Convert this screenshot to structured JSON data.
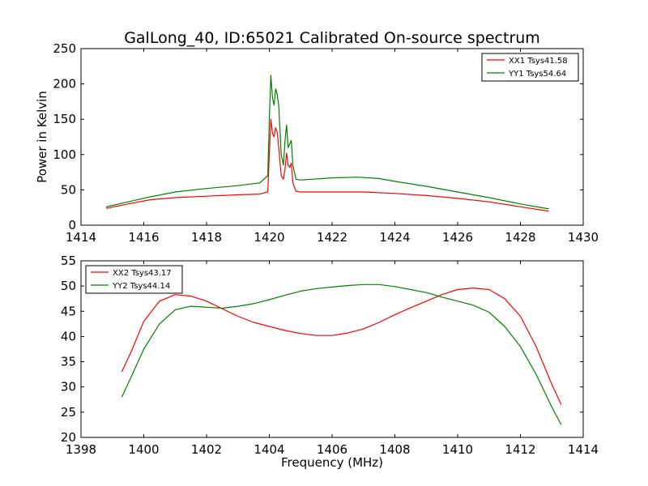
{
  "title": "GalLong_40, ID:65021 Calibrated On-source spectrum",
  "chart_data": [
    {
      "type": "line",
      "xlim": [
        1414,
        1430
      ],
      "ylim": [
        0,
        250
      ],
      "xticks": [
        1414,
        1416,
        1418,
        1420,
        1422,
        1424,
        1426,
        1428,
        1430
      ],
      "yticks": [
        0,
        50,
        100,
        150,
        200,
        250
      ],
      "xlabel": "",
      "ylabel": "Power in Kelvin",
      "grid": false,
      "legend_position": "top-right",
      "series": [
        {
          "name": "XX1 Tsys41.58",
          "color": "#ff0000",
          "x": [
            1414.8,
            1415.5,
            1416.2,
            1417,
            1418,
            1419,
            1419.7,
            1419.95,
            1420.0,
            1420.05,
            1420.1,
            1420.15,
            1420.2,
            1420.25,
            1420.3,
            1420.38,
            1420.45,
            1420.5,
            1420.55,
            1420.6,
            1420.65,
            1420.7,
            1420.75,
            1420.85,
            1421,
            1422,
            1423,
            1424,
            1425,
            1426,
            1427,
            1428,
            1428.9
          ],
          "y": [
            24,
            30,
            36,
            39,
            41,
            43,
            44,
            47,
            100,
            150,
            130,
            125,
            138,
            132,
            110,
            70,
            65,
            80,
            102,
            85,
            82,
            88,
            60,
            48,
            47,
            47,
            47,
            45,
            42,
            38,
            33,
            26,
            20
          ]
        },
        {
          "name": "YY1 Tsys54.64",
          "color": "#008000",
          "x": [
            1414.8,
            1415.5,
            1416.2,
            1417,
            1418,
            1419,
            1419.7,
            1419.95,
            1420.0,
            1420.05,
            1420.1,
            1420.15,
            1420.2,
            1420.25,
            1420.3,
            1420.38,
            1420.45,
            1420.5,
            1420.55,
            1420.6,
            1420.65,
            1420.7,
            1420.75,
            1420.85,
            1421,
            1422,
            1422.8,
            1423.5,
            1424,
            1425,
            1426,
            1427,
            1428,
            1428.9
          ],
          "y": [
            26,
            33,
            40,
            47,
            52,
            56,
            60,
            70,
            150,
            212,
            180,
            170,
            193,
            185,
            170,
            100,
            85,
            120,
            142,
            110,
            115,
            120,
            85,
            65,
            64,
            67,
            68,
            66,
            62,
            55,
            47,
            39,
            30,
            23
          ]
        }
      ]
    },
    {
      "type": "line",
      "xlim": [
        1398,
        1414
      ],
      "ylim": [
        20,
        55
      ],
      "xticks": [
        1398,
        1400,
        1402,
        1404,
        1406,
        1408,
        1410,
        1412,
        1414
      ],
      "yticks": [
        20,
        25,
        30,
        35,
        40,
        45,
        50,
        55
      ],
      "xlabel": "Frequency (MHz)",
      "ylabel": "",
      "grid": false,
      "legend_position": "top-left",
      "series": [
        {
          "name": "XX2 Tsys43.17",
          "color": "#ff0000",
          "x": [
            1399.3,
            1399.6,
            1400,
            1400.5,
            1401,
            1401.5,
            1402,
            1402.5,
            1403,
            1403.5,
            1404,
            1404.5,
            1405,
            1405.5,
            1406,
            1406.5,
            1407,
            1407.5,
            1408,
            1408.5,
            1409,
            1409.5,
            1410,
            1410.5,
            1411,
            1411.5,
            1412,
            1412.5,
            1413,
            1413.3
          ],
          "y": [
            33,
            37,
            43,
            47,
            48.3,
            48,
            47,
            45.5,
            44,
            42.8,
            42,
            41.2,
            40.6,
            40.2,
            40.2,
            40.7,
            41.5,
            42.8,
            44.3,
            45.7,
            47,
            48.3,
            49.3,
            49.6,
            49.3,
            47.5,
            44,
            38,
            30.5,
            26.5
          ]
        },
        {
          "name": "YY2 Tsys44.14",
          "color": "#008000",
          "x": [
            1399.3,
            1399.6,
            1400,
            1400.5,
            1401,
            1401.5,
            1402,
            1402.5,
            1403,
            1403.5,
            1404,
            1404.5,
            1405,
            1405.5,
            1406,
            1406.5,
            1407,
            1407.5,
            1408,
            1408.5,
            1409,
            1409.5,
            1410,
            1410.5,
            1411,
            1411.5,
            1412,
            1412.5,
            1413,
            1413.3
          ],
          "y": [
            28,
            32,
            37.5,
            42.5,
            45.3,
            46,
            45.8,
            45.6,
            46,
            46.5,
            47.3,
            48.2,
            49,
            49.5,
            49.8,
            50.1,
            50.3,
            50.3,
            49.9,
            49.3,
            48.7,
            47.8,
            47,
            46.2,
            44.8,
            42,
            38,
            32.5,
            26,
            22.5
          ]
        }
      ]
    }
  ]
}
